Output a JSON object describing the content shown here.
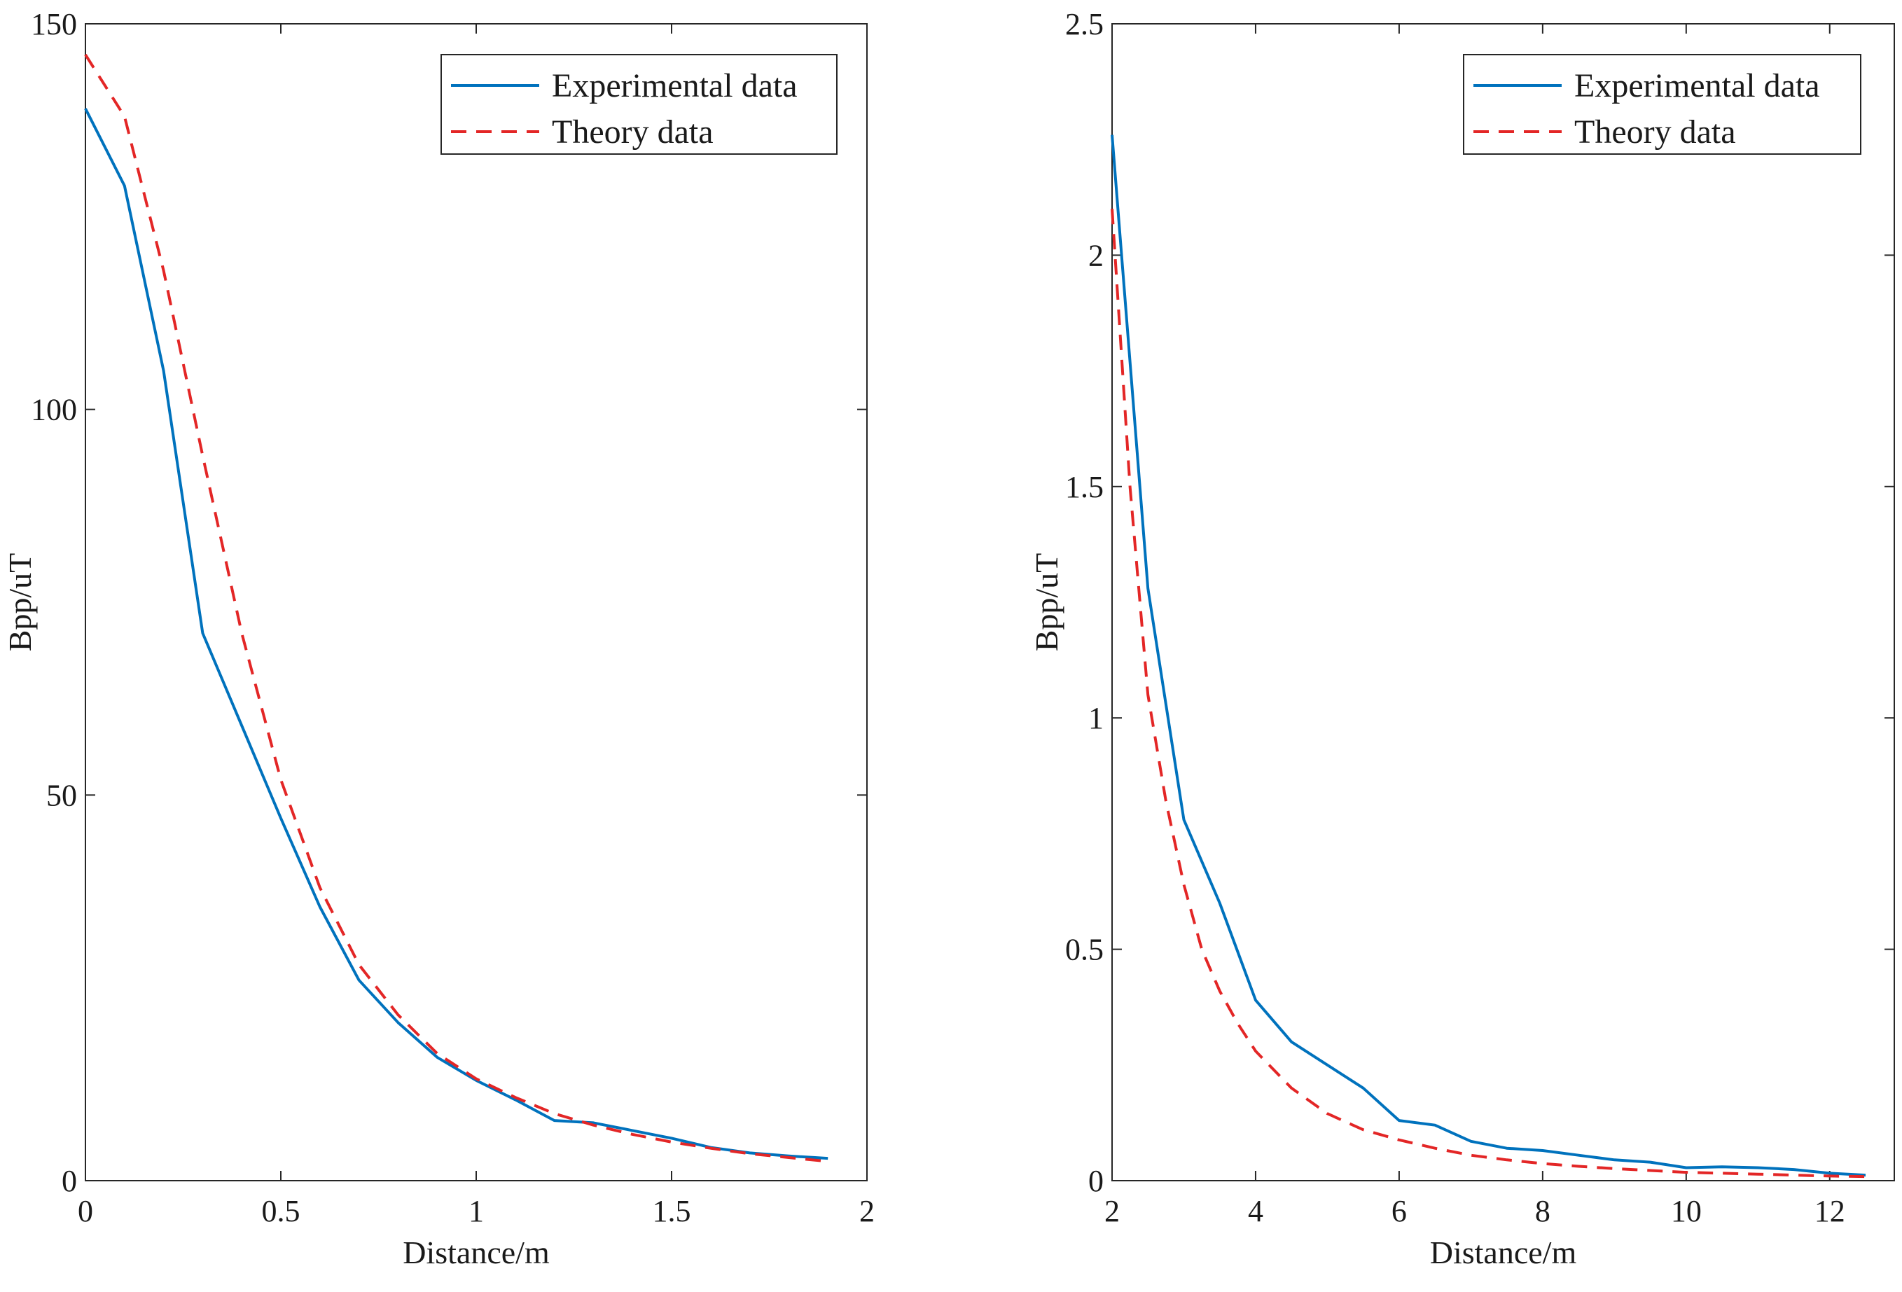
{
  "colors": {
    "experimental": "#0072BD",
    "theory": "#E32626",
    "axis": "#262626",
    "background": "#ffffff"
  },
  "chart_data": [
    {
      "type": "line",
      "xlabel": "Distance/m",
      "ylabel": "Bpp/uT",
      "xlim": [
        0,
        2
      ],
      "ylim": [
        0,
        150
      ],
      "xticks": [
        0,
        0.5,
        1,
        1.5,
        2
      ],
      "xtick_labels": [
        "0",
        "0.5",
        "1",
        "1.5",
        "2"
      ],
      "yticks": [
        0,
        50,
        100,
        150
      ],
      "ytick_labels": [
        "0",
        "50",
        "100",
        "150"
      ],
      "legend_position": "top-right",
      "series": [
        {
          "name": "Experimental data",
          "style": "solid",
          "x": [
            0,
            0.1,
            0.2,
            0.3,
            0.4,
            0.5,
            0.6,
            0.7,
            0.8,
            0.9,
            1.0,
            1.1,
            1.2,
            1.3,
            1.4,
            1.5,
            1.6,
            1.7,
            1.8,
            1.9
          ],
          "y": [
            139,
            129,
            105,
            71,
            59,
            47,
            35.5,
            26,
            20.5,
            16,
            13,
            10.5,
            7.8,
            7.5,
            6.5,
            5.5,
            4.3,
            3.6,
            3.2,
            2.9
          ]
        },
        {
          "name": "Theory data",
          "style": "dashed",
          "x": [
            0,
            0.1,
            0.2,
            0.3,
            0.4,
            0.5,
            0.6,
            0.7,
            0.8,
            0.9,
            1.0,
            1.1,
            1.2,
            1.3,
            1.4,
            1.5,
            1.6,
            1.7,
            1.8,
            1.9
          ],
          "y": [
            146,
            138,
            118,
            94,
            71,
            52,
            38,
            28,
            21.5,
            16.5,
            13.2,
            10.8,
            8.7,
            7.2,
            6,
            5,
            4.2,
            3.5,
            3,
            2.5
          ]
        }
      ]
    },
    {
      "type": "line",
      "xlabel": "Distance/m",
      "ylabel": "Bpp/uT",
      "xlim": [
        2,
        12.9
      ],
      "ylim": [
        0,
        2.5
      ],
      "xticks": [
        2,
        4,
        6,
        8,
        10,
        12
      ],
      "xtick_labels": [
        "2",
        "4",
        "6",
        "8",
        "10",
        "12"
      ],
      "yticks": [
        0,
        0.5,
        1,
        1.5,
        2,
        2.5
      ],
      "ytick_labels": [
        "0",
        "0.5",
        "1",
        "1.5",
        "2",
        "2.5"
      ],
      "legend_position": "top-right",
      "series": [
        {
          "name": "Experimental data",
          "style": "solid",
          "x": [
            2,
            2.5,
            3,
            3.5,
            4,
            4.5,
            5,
            5.5,
            6,
            6.5,
            7,
            7.5,
            8,
            8.5,
            9,
            9.5,
            10,
            10.5,
            11,
            11.5,
            12,
            12.5
          ],
          "y": [
            2.26,
            1.28,
            0.78,
            0.6,
            0.39,
            0.3,
            0.25,
            0.2,
            0.13,
            0.12,
            0.085,
            0.07,
            0.065,
            0.055,
            0.045,
            0.04,
            0.028,
            0.03,
            0.028,
            0.024,
            0.016,
            0.012
          ]
        },
        {
          "name": "Theory data",
          "style": "dashed",
          "x": [
            2,
            2.25,
            2.5,
            2.75,
            3,
            3.25,
            3.5,
            3.75,
            4,
            4.5,
            5,
            5.5,
            6,
            6.5,
            7,
            7.5,
            8,
            8.5,
            9,
            9.5,
            10,
            10.5,
            11,
            11.5,
            12,
            12.5
          ],
          "y": [
            2.1,
            1.5,
            1.05,
            0.82,
            0.64,
            0.5,
            0.41,
            0.34,
            0.28,
            0.2,
            0.145,
            0.11,
            0.088,
            0.07,
            0.055,
            0.045,
            0.037,
            0.031,
            0.026,
            0.022,
            0.018,
            0.016,
            0.014,
            0.012,
            0.01,
            0.009
          ]
        }
      ]
    }
  ]
}
